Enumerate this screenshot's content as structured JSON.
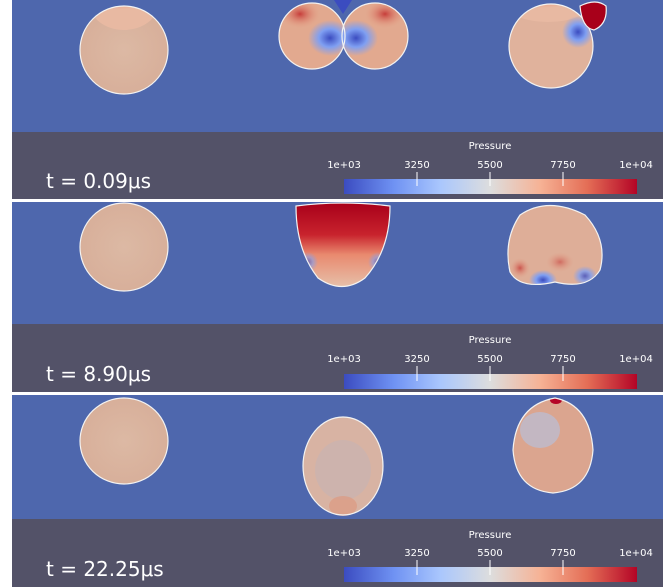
{
  "colorbar": {
    "title": "Pressure",
    "tick_labels": [
      "1e+03",
      "3250",
      "5500",
      "7750",
      "1e+04"
    ],
    "gradient": [
      "#3b4cc0",
      "#6f92f3",
      "#aac7fd",
      "#dddddd",
      "#f6b295",
      "#e46e56",
      "#b40426"
    ]
  },
  "colors": {
    "channel": "#4e67ad",
    "info_bar": "#535268",
    "divider": "#ffffff",
    "droplet_outline": "#f2f2f2"
  },
  "panels": [
    {
      "time_label": "t = 0.09μs"
    },
    {
      "time_label": "t = 8.90μs"
    },
    {
      "time_label": "t = 22.25μs"
    }
  ]
}
